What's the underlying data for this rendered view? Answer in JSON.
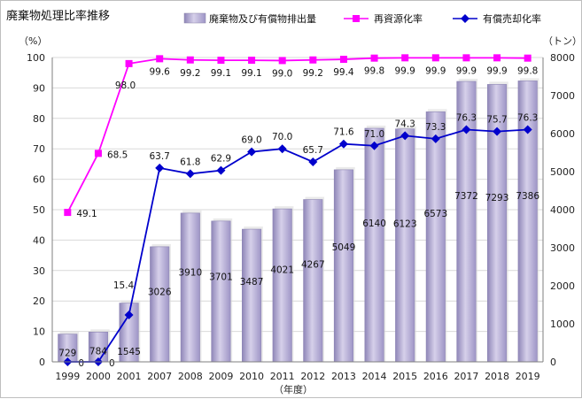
{
  "chart_data": {
    "type": "bar",
    "title": "廃棄物処理比率推移",
    "xlabel": "（年度）",
    "ylabel_left": "（%）",
    "ylabel_right": "（トン）",
    "categories": [
      "1999",
      "2000",
      "2001",
      "2007",
      "2008",
      "2009",
      "2010",
      "2011",
      "2012",
      "2013",
      "2014",
      "2015",
      "2016",
      "2017",
      "2018",
      "2019"
    ],
    "ylim_left": [
      0,
      100
    ],
    "ylim_right": [
      0,
      8000
    ],
    "left_ticks": [
      "0",
      "10",
      "20",
      "30",
      "40",
      "50",
      "60",
      "70",
      "80",
      "90",
      "100"
    ],
    "right_ticks": [
      "0",
      "1000",
      "2000",
      "3000",
      "4000",
      "5000",
      "6000",
      "7000",
      "8000"
    ],
    "legend_position": "top",
    "series": [
      {
        "name": "廃棄物及び有償物排出量",
        "type": "bar",
        "axis": "right",
        "color": "#b3a9d2",
        "values": [
          729,
          784,
          1545,
          3026,
          3910,
          3701,
          3487,
          4021,
          4267,
          5049,
          6140,
          6123,
          6573,
          7372,
          7293,
          7386
        ]
      },
      {
        "name": "再資源化率",
        "type": "line",
        "axis": "left",
        "color": "#ff00ff",
        "marker": "square",
        "values": [
          49.1,
          68.5,
          98.0,
          99.6,
          99.2,
          99.1,
          99.1,
          99.0,
          99.2,
          99.4,
          99.8,
          99.9,
          99.9,
          99.9,
          99.9,
          99.8
        ]
      },
      {
        "name": "有償売却化率",
        "type": "line",
        "axis": "left",
        "color": "#0000cc",
        "marker": "diamond",
        "values": [
          0,
          0,
          15.4,
          63.7,
          61.8,
          62.9,
          69.0,
          70.0,
          65.7,
          71.6,
          71.0,
          74.3,
          73.3,
          76.3,
          75.7,
          76.3
        ]
      }
    ]
  }
}
